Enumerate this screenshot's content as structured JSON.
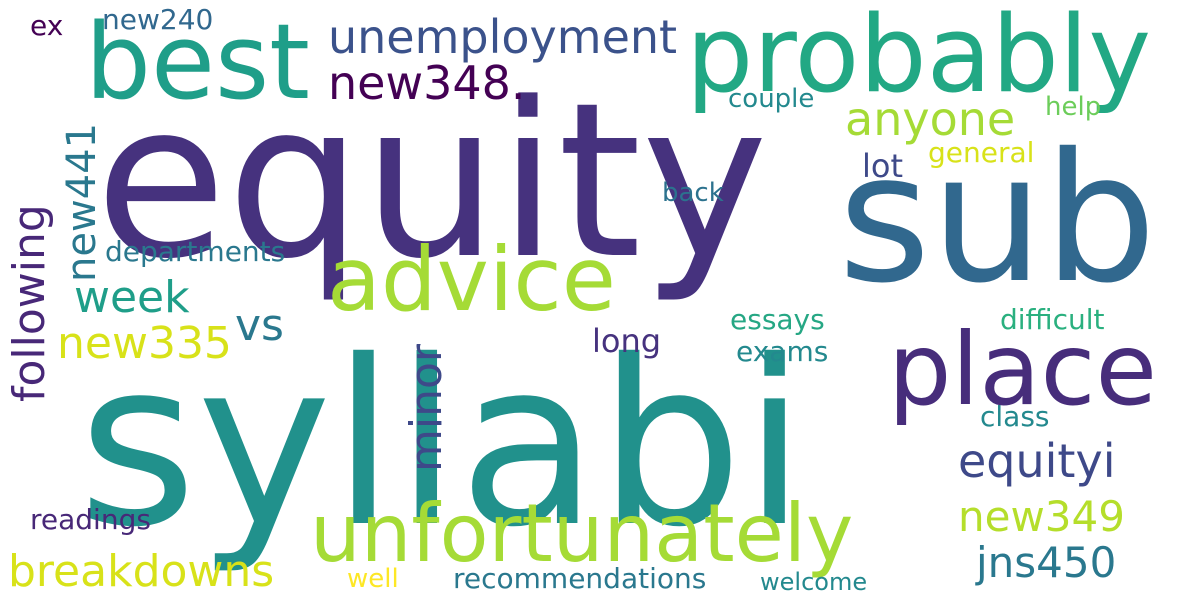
{
  "palette": {
    "dark_purple": "#440154",
    "indigo": "#46327e",
    "blue": "#365c8d",
    "steel_blue": "#277f8e",
    "teal": "#1fa187",
    "green": "#4ac16d",
    "lime": "#a0da39",
    "yellow": "#fde725"
  },
  "words": [
    {
      "id": "syllabi",
      "text": "syllabi",
      "color": "#21918c"
    },
    {
      "id": "equity",
      "text": "equity",
      "color": "#46327e"
    },
    {
      "id": "sub",
      "text": "sub",
      "color": "#31688e"
    },
    {
      "id": "probably",
      "text": "probably",
      "color": "#22a884"
    },
    {
      "id": "best",
      "text": "best",
      "color": "#1f9e89"
    },
    {
      "id": "place",
      "text": "place",
      "color": "#472d7b"
    },
    {
      "id": "advice",
      "text": "advice",
      "color": "#a5db36"
    },
    {
      "id": "unfortunately",
      "text": "unfortunately",
      "color": "#a5db36"
    },
    {
      "id": "unemployment",
      "text": "unemployment",
      "color": "#3b528b"
    },
    {
      "id": "new348",
      "text": "new348.",
      "color": "#440154"
    },
    {
      "id": "anyone",
      "text": "anyone",
      "color": "#a5db36"
    },
    {
      "id": "equityi",
      "text": "equityi",
      "color": "#3e4989"
    },
    {
      "id": "new349",
      "text": "new349",
      "color": "#b5de2b"
    },
    {
      "id": "jns450",
      "text": "jns450",
      "color": "#2a788e"
    },
    {
      "id": "breakdowns",
      "text": "breakdowns",
      "color": "#d8e219"
    },
    {
      "id": "new335",
      "text": "new335",
      "color": "#d8e219"
    },
    {
      "id": "week",
      "text": "week",
      "color": "#1f9e89"
    },
    {
      "id": "vs",
      "text": "vs",
      "color": "#2a788e"
    },
    {
      "id": "following",
      "text": "following",
      "color": "#482878"
    },
    {
      "id": "new441",
      "text": "new441",
      "color": "#2a788e"
    },
    {
      "id": "minor",
      "text": "minor",
      "color": "#3e4989"
    },
    {
      "id": "departments",
      "text": "departments",
      "color": "#2a788e"
    },
    {
      "id": "recommendations",
      "text": "recommendations",
      "color": "#2a788e"
    },
    {
      "id": "readings",
      "text": "readings",
      "color": "#482878"
    },
    {
      "id": "essays",
      "text": "essays",
      "color": "#26a784"
    },
    {
      "id": "exams",
      "text": "exams",
      "color": "#23898e"
    },
    {
      "id": "difficult",
      "text": "difficult",
      "color": "#2ab07f"
    },
    {
      "id": "class",
      "text": "class",
      "color": "#23898e"
    },
    {
      "id": "long",
      "text": "long",
      "color": "#46327e"
    },
    {
      "id": "general",
      "text": "general",
      "color": "#d8e219"
    },
    {
      "id": "lot",
      "text": "lot",
      "color": "#3e4989"
    },
    {
      "id": "couple",
      "text": "couple",
      "color": "#23898e"
    },
    {
      "id": "help",
      "text": "help",
      "color": "#6ccd5a"
    },
    {
      "id": "back",
      "text": "back",
      "color": "#2c728e"
    },
    {
      "id": "new240",
      "text": "new240",
      "color": "#31688e"
    },
    {
      "id": "ex",
      "text": "ex",
      "color": "#440154"
    },
    {
      "id": "well",
      "text": "well",
      "color": "#fde725"
    },
    {
      "id": "welcome",
      "text": "welcome",
      "color": "#23898e"
    }
  ]
}
